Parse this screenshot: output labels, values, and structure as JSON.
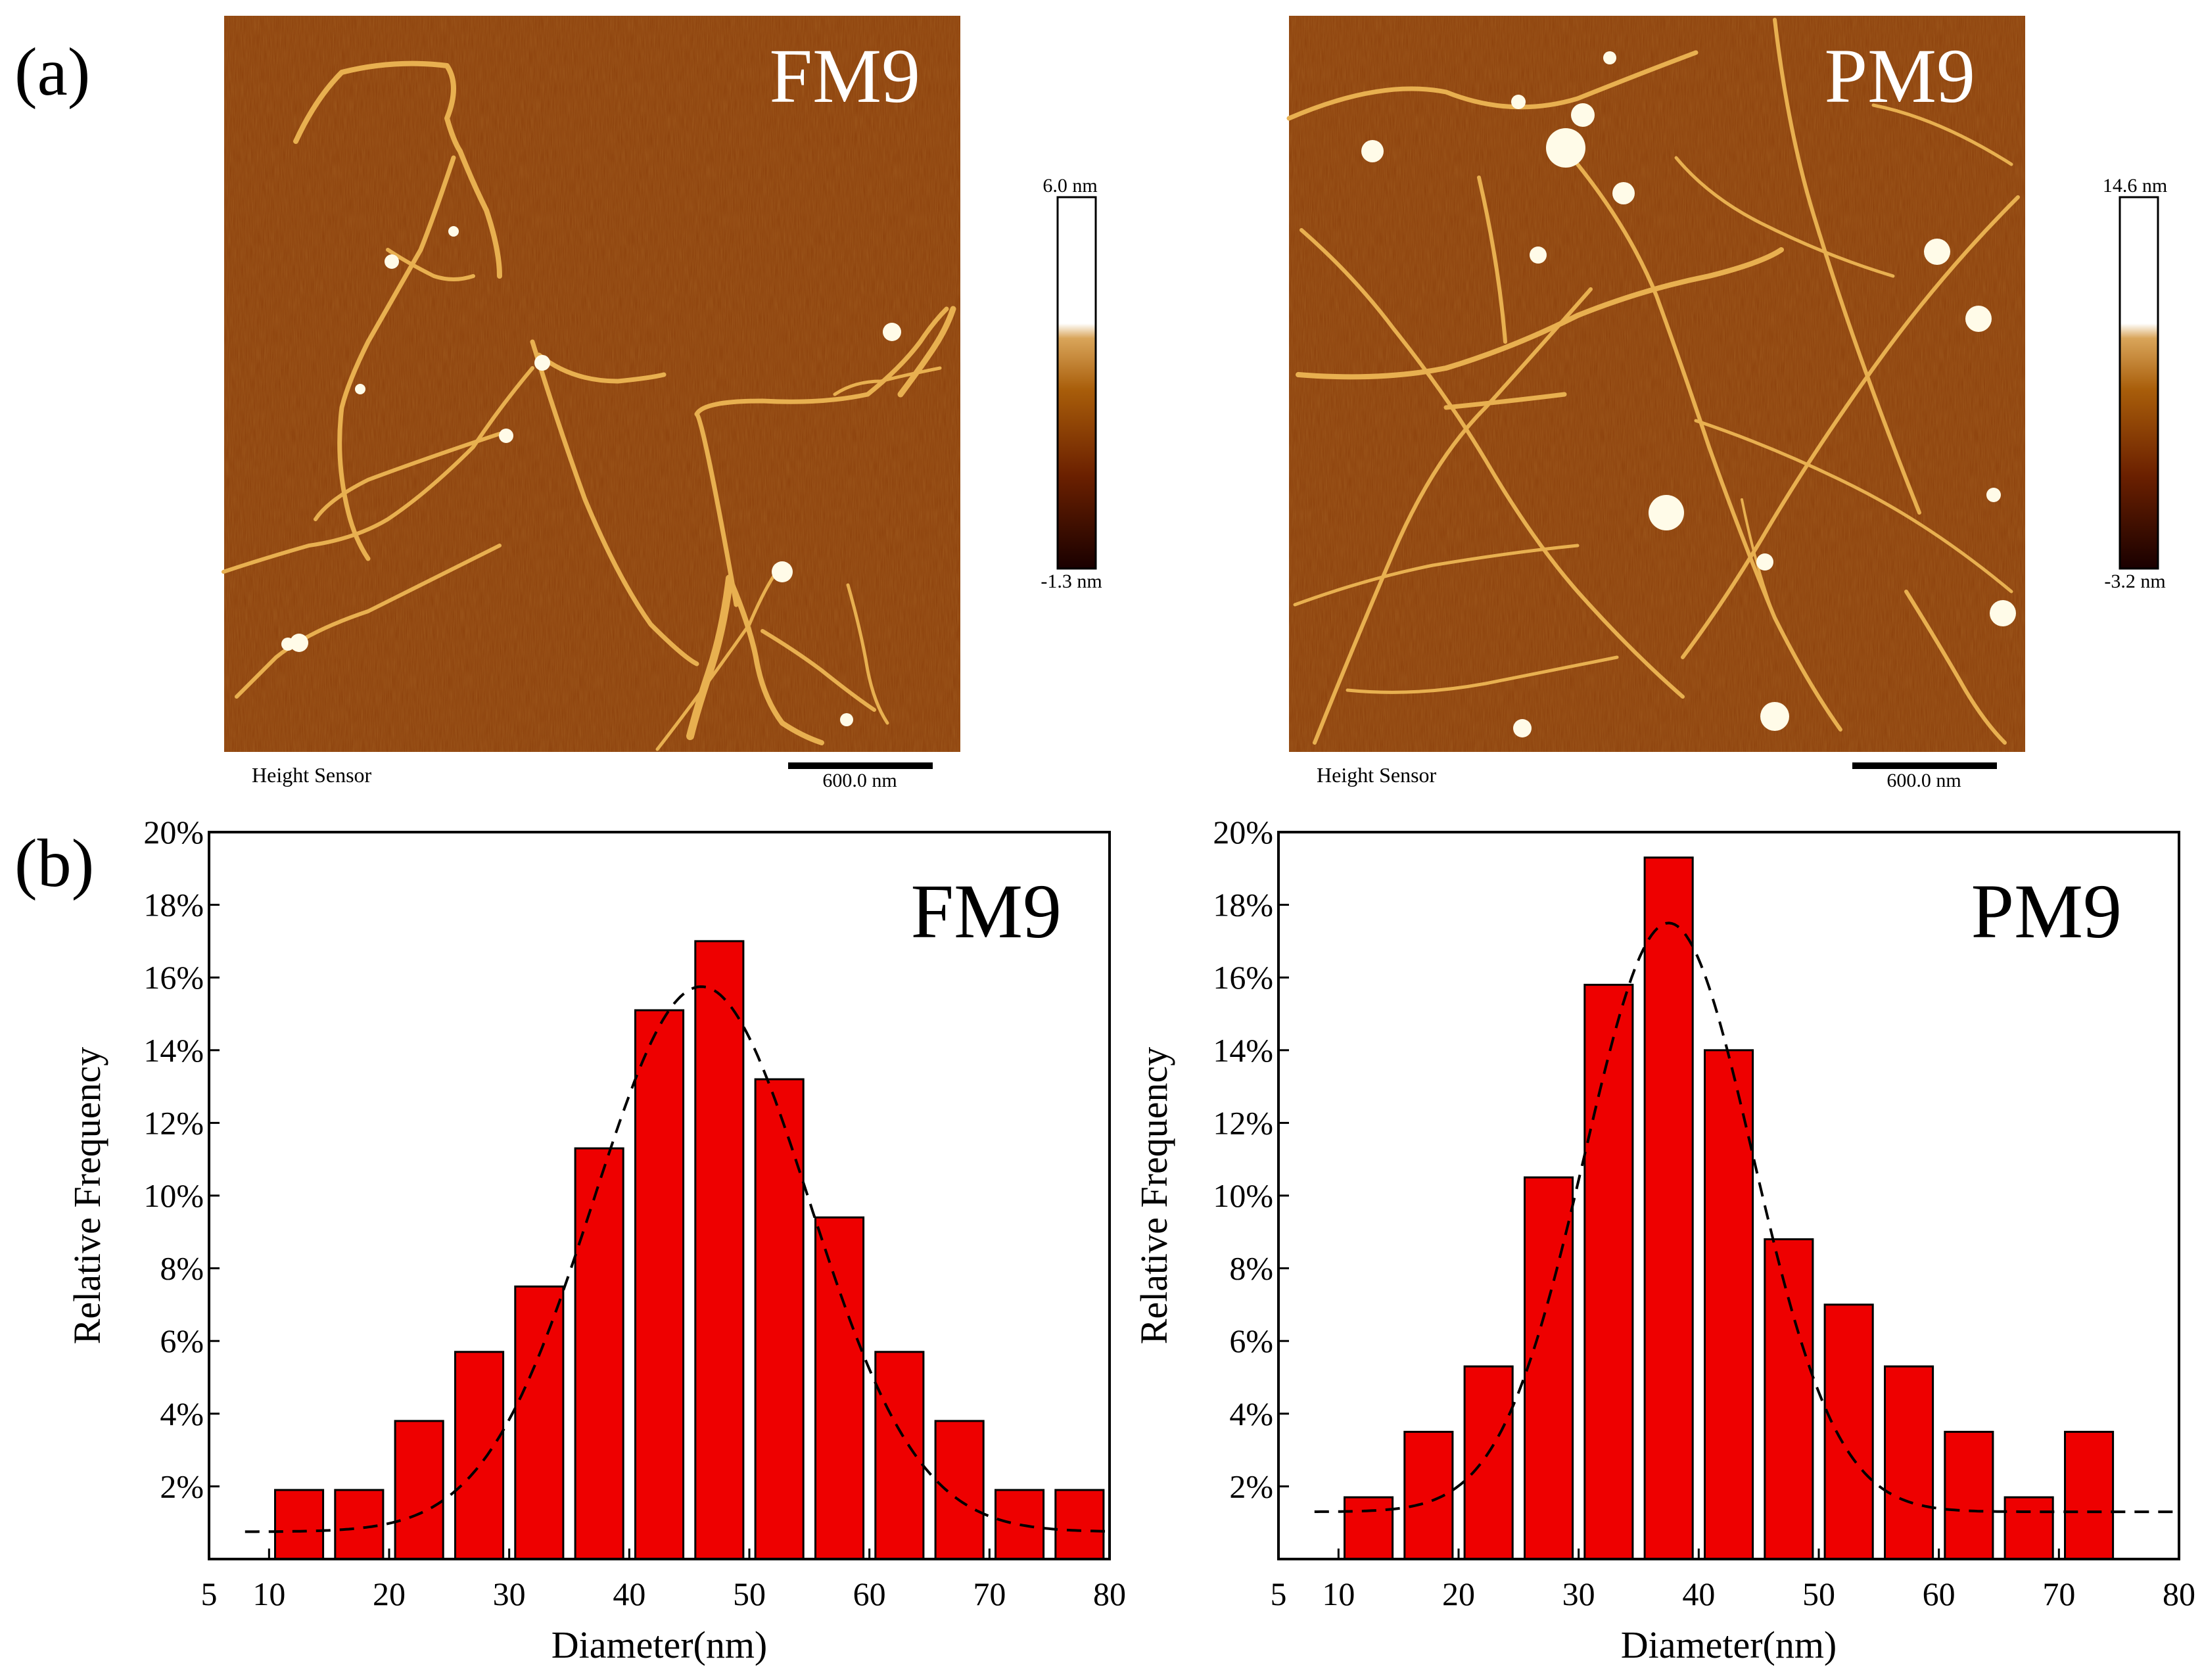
{
  "panels": {
    "a_label": "(a)",
    "b_label": "(b)"
  },
  "afm_images": [
    {
      "name": "FM9",
      "label": "FM9",
      "scale_max": "6.0 nm",
      "scale_min": "-1.3 nm",
      "sensor_label": "Height Sensor",
      "scalebar_label": "600.0 nm"
    },
    {
      "name": "PM9",
      "label": "PM9",
      "scale_max": "14.6 nm",
      "scale_min": "-3.2 nm",
      "sensor_label": "Height Sensor",
      "scalebar_label": "600.0 nm"
    }
  ],
  "colors": {
    "bar_fill": "#ee0000",
    "bar_stroke": "#000000",
    "afm_background": "#8a3e0a",
    "afm_fiber": "#e8b050"
  },
  "chart_data": [
    {
      "type": "bar",
      "title": "FM9",
      "xlabel": "Diameter(nm)",
      "ylabel": "Relative Frequency",
      "xlim": [
        5,
        80
      ],
      "ylim": [
        0,
        20
      ],
      "x_ticks": [
        5,
        10,
        20,
        30,
        40,
        50,
        60,
        70,
        80
      ],
      "y_ticks": [
        2,
        4,
        6,
        8,
        10,
        12,
        14,
        16,
        18,
        20
      ],
      "y_tick_labels": [
        "2%",
        "4%",
        "6%",
        "8%",
        "10%",
        "12%",
        "14%",
        "16%",
        "18%",
        "20%"
      ],
      "categories": [
        12.5,
        17.5,
        22.5,
        27.5,
        32.5,
        37.5,
        42.5,
        47.5,
        52.5,
        57.5,
        62.5,
        67.5,
        72.5,
        77.5
      ],
      "values": [
        1.9,
        1.9,
        3.8,
        5.7,
        7.5,
        11.3,
        15.1,
        17.0,
        13.2,
        9.4,
        5.7,
        3.8,
        1.9,
        1.9
      ],
      "bin_width": 5,
      "fit": {
        "type": "gaussian",
        "baseline": 0.75,
        "amplitude": 15.0,
        "mean": 46.0,
        "sigma": 9.0
      }
    },
    {
      "type": "bar",
      "title": "PM9",
      "xlabel": "Diameter(nm)",
      "ylabel": "Relative Frequency",
      "xlim": [
        5,
        80
      ],
      "ylim": [
        0,
        20
      ],
      "x_ticks": [
        5,
        10,
        20,
        30,
        40,
        50,
        60,
        70,
        80
      ],
      "y_ticks": [
        2,
        4,
        6,
        8,
        10,
        12,
        14,
        16,
        18,
        20
      ],
      "y_tick_labels": [
        "2%",
        "4%",
        "6%",
        "8%",
        "10%",
        "12%",
        "14%",
        "16%",
        "18%",
        "20%"
      ],
      "categories": [
        12.5,
        17.5,
        22.5,
        27.5,
        32.5,
        37.5,
        42.5,
        47.5,
        52.5,
        57.5,
        62.5,
        67.5,
        72.5
      ],
      "values": [
        1.7,
        3.5,
        5.3,
        10.5,
        15.8,
        19.3,
        14.0,
        8.8,
        7.0,
        5.3,
        3.5,
        1.7,
        3.5
      ],
      "bin_width": 5,
      "fit": {
        "type": "gaussian",
        "baseline": 1.3,
        "amplitude": 16.2,
        "mean": 37.5,
        "sigma": 7.0
      }
    }
  ]
}
